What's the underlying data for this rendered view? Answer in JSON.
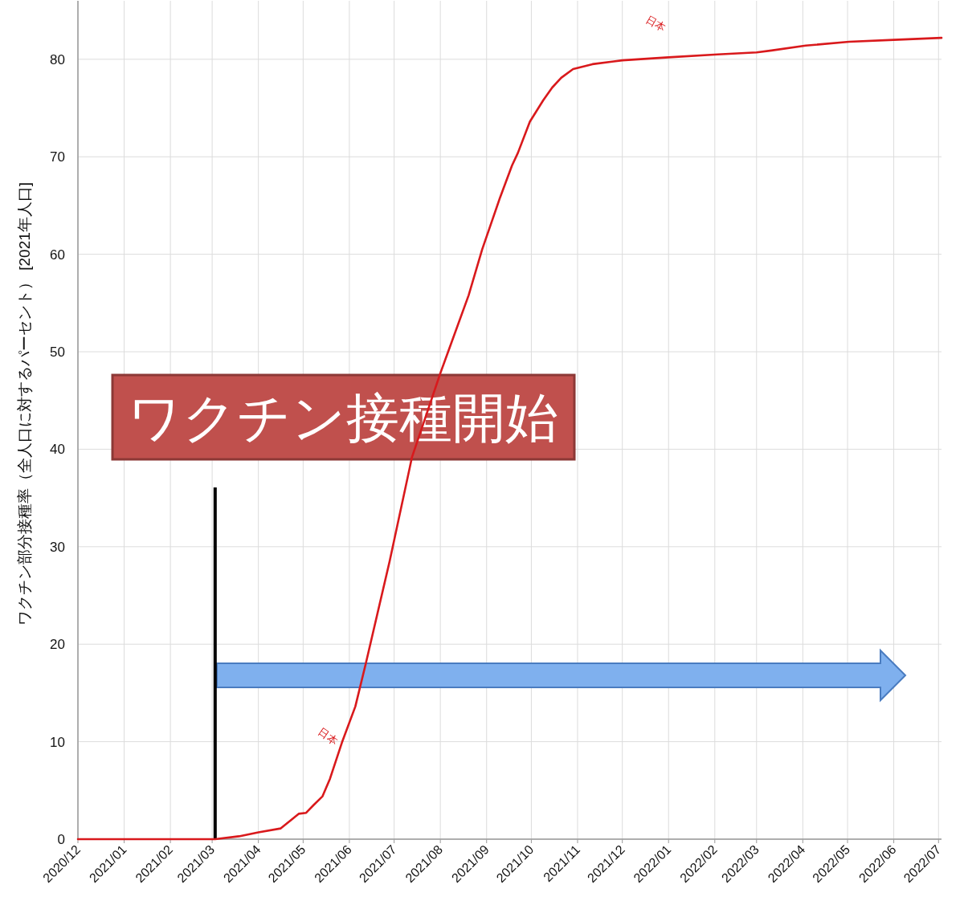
{
  "chart_data": {
    "type": "line",
    "ylabel": "ワクチン部分接種率（全人口に対するパーセント） [2021年人口]",
    "xlim": [
      "2020-12-01",
      "2022-07-03"
    ],
    "ylim": [
      0,
      86
    ],
    "xticks": [
      {
        "value": "2020-12",
        "label": "2020/12"
      },
      {
        "value": "2021-01",
        "label": "2021/01"
      },
      {
        "value": "2021-02",
        "label": "2021/02"
      },
      {
        "value": "2021-03",
        "label": "2021/03"
      },
      {
        "value": "2021-04",
        "label": "2021/04"
      },
      {
        "value": "2021-05",
        "label": "2021/05"
      },
      {
        "value": "2021-06",
        "label": "2021/06"
      },
      {
        "value": "2021-07",
        "label": "2021/07"
      },
      {
        "value": "2021-08",
        "label": "2021/08"
      },
      {
        "value": "2021-09",
        "label": "2021/09"
      },
      {
        "value": "2021-10",
        "label": "2021/10"
      },
      {
        "value": "2021-11",
        "label": "2021/11"
      },
      {
        "value": "2021-12",
        "label": "2021/12"
      },
      {
        "value": "2022-01",
        "label": "2022/01"
      },
      {
        "value": "2022-02",
        "label": "2022/02"
      },
      {
        "value": "2022-03",
        "label": "2022/03"
      },
      {
        "value": "2022-04",
        "label": "2022/04"
      },
      {
        "value": "2022-05",
        "label": "2022/05"
      },
      {
        "value": "2022-06",
        "label": "2022/06"
      },
      {
        "value": "2022-07",
        "label": "2022/07"
      }
    ],
    "yticks": [
      0,
      10,
      20,
      30,
      40,
      50,
      60,
      70,
      80
    ],
    "grid": true,
    "series": [
      {
        "name": "日本",
        "color": "#d9191c",
        "x": [
          "2020-12-01",
          "2021-03-03",
          "2021-03-19",
          "2021-04-01",
          "2021-04-16",
          "2021-04-24",
          "2021-04-28",
          "2021-05-03",
          "2021-05-08",
          "2021-05-14",
          "2021-05-19",
          "2021-05-27",
          "2021-06-05",
          "2021-06-12",
          "2021-06-28",
          "2021-07-13",
          "2021-08-01",
          "2021-08-06",
          "2021-08-20",
          "2021-08-29",
          "2021-09-10",
          "2021-09-18",
          "2021-09-22",
          "2021-09-30",
          "2021-10-09",
          "2021-10-15",
          "2021-10-21",
          "2021-10-29",
          "2021-11-11",
          "2021-12-01",
          "2022-01-01",
          "2022-02-03",
          "2022-03-01",
          "2022-03-11",
          "2022-04-03",
          "2022-05-02",
          "2022-06-01",
          "2022-07-03"
        ],
        "values": [
          0,
          0,
          0.3,
          0.7,
          1.1,
          2.1,
          2.6,
          2.7,
          3.5,
          4.4,
          6.2,
          9.9,
          13.6,
          18,
          28.5,
          39.2,
          47.8,
          49.9,
          55.8,
          60.5,
          65.8,
          69.1,
          70.4,
          73.6,
          75.8,
          77.1,
          78.1,
          79.0,
          79.5,
          79.9,
          80.2,
          80.5,
          80.7,
          80.9,
          81.4,
          81.8,
          82.0,
          82.2
        ]
      }
    ],
    "ref_lines": [
      {
        "axis": "x",
        "value": "2021-03-03",
        "label": "ワクチン接種開始",
        "color": "#000000"
      }
    ]
  }
}
